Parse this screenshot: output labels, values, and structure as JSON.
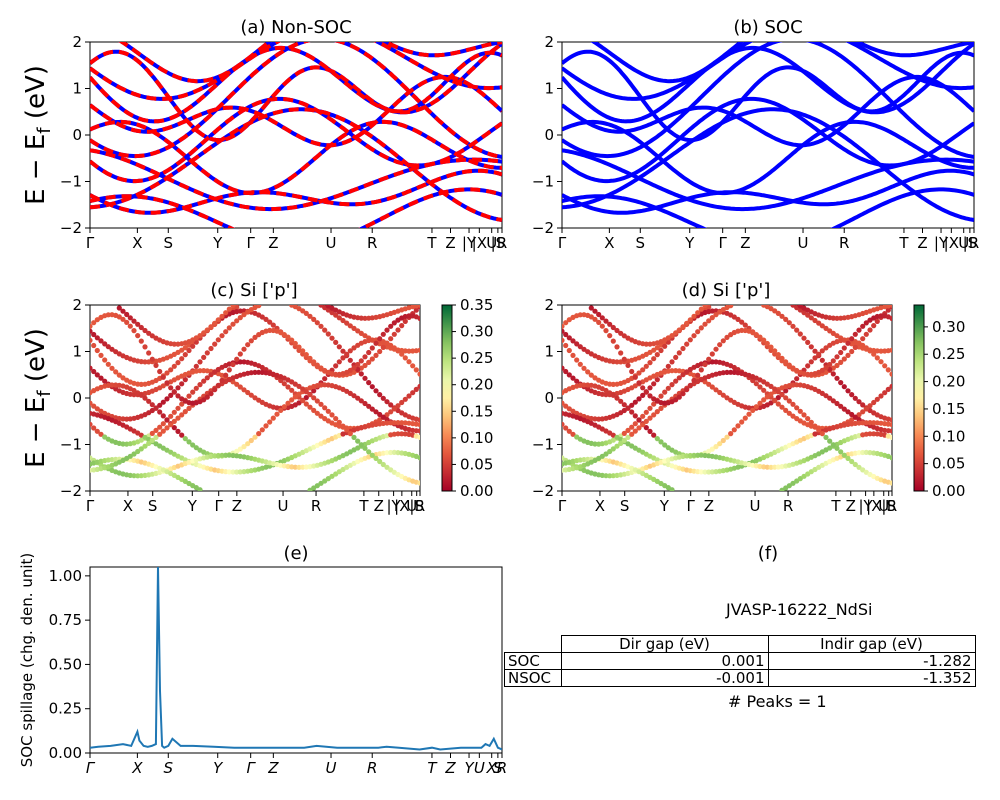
{
  "kpath_labels": [
    "Γ",
    "X",
    "S",
    "Y",
    "Γ",
    "Z",
    "U",
    "R",
    "T",
    "Z",
    "|Y",
    "|X",
    "U",
    "|S",
    "R"
  ],
  "kpath_pos": [
    0,
    0.115,
    0.19,
    0.31,
    0.39,
    0.445,
    0.585,
    0.685,
    0.83,
    0.875,
    0.92,
    0.945,
    0.975,
    0.99,
    1.0
  ],
  "kpath_text_ab": "Γ         X    S         Y    Γ   Z          U      R         T   Z|Y|X|U|SR",
  "cbar_c_ticks": [
    "0.35",
    "0.30",
    "0.25",
    "0.20",
    "0.15",
    "0.10",
    "0.05",
    "0.00"
  ],
  "cbar_d_ticks": [
    "0.30",
    "0.25",
    "0.20",
    "0.15",
    "0.10",
    "0.05",
    "0.00"
  ],
  "colors": {
    "nonsoc_red": "#ff0000",
    "nonsoc_blue": "#0000ff",
    "soc": "#0000ff",
    "spillage": "#1f77b4"
  },
  "chart_data": [
    {
      "type": "line",
      "title": "(a) Non-SOC",
      "ylabel": "E − E_f (eV)",
      "ylim": [
        -2,
        2
      ],
      "yticks": [
        -2,
        -1,
        0,
        1,
        2
      ],
      "xticklabels": [
        "Γ",
        "X",
        "S",
        "Y",
        "Γ",
        "Z",
        "U",
        "R",
        "T",
        "Z",
        "|Y",
        "|X",
        "U",
        "|S",
        "R"
      ]
    },
    {
      "type": "line",
      "title": "(b) SOC",
      "ylim": [
        -2,
        2
      ],
      "yticks": [
        -2,
        -1,
        0,
        1,
        2
      ],
      "xticklabels": [
        "Γ",
        "X",
        "S",
        "Y",
        "Γ",
        "Z",
        "U",
        "R",
        "T",
        "Z",
        "|Y",
        "|X",
        "U",
        "|S",
        "R"
      ]
    },
    {
      "type": "scatter",
      "title": "(c)  Si ['p']",
      "ylabel": "E − E_f (eV)",
      "ylim": [
        -2,
        2
      ],
      "yticks": [
        -2,
        -1,
        0,
        1,
        2
      ],
      "colorbar_range": [
        0.0,
        0.35
      ],
      "colorbar_ticks": [
        0.0,
        0.05,
        0.1,
        0.15,
        0.2,
        0.25,
        0.3,
        0.35
      ],
      "xticklabels": [
        "Γ",
        "X",
        "S",
        "Y",
        "Γ",
        "Z",
        "U",
        "R",
        "T",
        "Z",
        "|Y",
        "|X",
        "U",
        "|S",
        "R"
      ]
    },
    {
      "type": "scatter",
      "title": "(d) Si ['p']",
      "ylim": [
        -2,
        2
      ],
      "yticks": [
        -2,
        -1,
        0,
        1,
        2
      ],
      "colorbar_range": [
        0.0,
        0.34
      ],
      "colorbar_ticks": [
        0.0,
        0.05,
        0.1,
        0.15,
        0.2,
        0.25,
        0.3
      ],
      "xticklabels": [
        "Γ",
        "X",
        "S",
        "Y",
        "Γ",
        "Z",
        "U",
        "R",
        "T",
        "Z",
        "|Y",
        "|X",
        "U",
        "|S",
        "R"
      ]
    },
    {
      "type": "line",
      "title": "(e)",
      "ylabel": "SOC spillage (chg. den. unit)",
      "ylim": [
        0,
        1.05
      ],
      "yticks": [
        0.0,
        0.25,
        0.5,
        0.75,
        1.0
      ],
      "xticklabels": [
        "Γ",
        "X",
        "S",
        "Y",
        "Γ",
        "Z",
        "U",
        "R",
        "T",
        "Z",
        "Y",
        "U",
        "X",
        "S",
        "R"
      ],
      "x": [
        0,
        0.02,
        0.05,
        0.08,
        0.1,
        0.115,
        0.12,
        0.13,
        0.14,
        0.15,
        0.16,
        0.165,
        0.17,
        0.175,
        0.18,
        0.19,
        0.2,
        0.22,
        0.25,
        0.3,
        0.35,
        0.4,
        0.45,
        0.48,
        0.5,
        0.52,
        0.55,
        0.6,
        0.65,
        0.7,
        0.72,
        0.75,
        0.8,
        0.83,
        0.85,
        0.9,
        0.93,
        0.95,
        0.96,
        0.97,
        0.98,
        0.99,
        1.0
      ],
      "y": [
        0.03,
        0.035,
        0.04,
        0.05,
        0.04,
        0.12,
        0.07,
        0.04,
        0.035,
        0.04,
        0.05,
        1.05,
        0.35,
        0.04,
        0.03,
        0.04,
        0.08,
        0.04,
        0.04,
        0.035,
        0.03,
        0.03,
        0.03,
        0.03,
        0.03,
        0.03,
        0.04,
        0.03,
        0.03,
        0.03,
        0.035,
        0.03,
        0.02,
        0.03,
        0.02,
        0.03,
        0.03,
        0.03,
        0.05,
        0.04,
        0.08,
        0.03,
        0.02
      ]
    },
    {
      "type": "table",
      "title": "(f)",
      "caption": "JVASP-16222_NdSi",
      "columns": [
        "Dir gap (eV)",
        "Indir gap (eV)"
      ],
      "rows": [
        {
          "label": "SOC",
          "dir": "0.001",
          "indir": "-1.282"
        },
        {
          "label": "NSOC",
          "dir": "-0.001",
          "indir": "-1.352"
        }
      ],
      "footer": "# Peaks = 1"
    }
  ]
}
